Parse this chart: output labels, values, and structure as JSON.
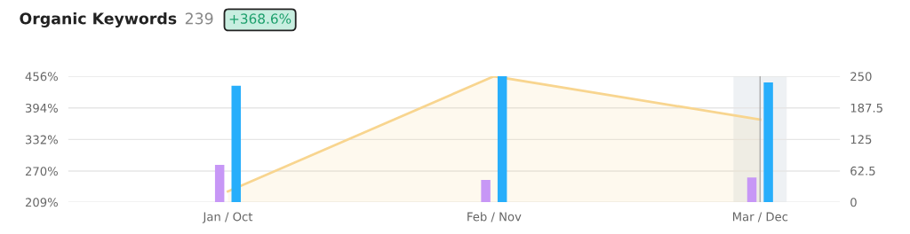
{
  "chart_data": {
    "type": "bar",
    "title": "Organic Keywords",
    "subtitle": "239",
    "annotations": [
      "+368.6%"
    ],
    "categories": [
      "Jan / Oct",
      "Feb / Nov",
      "Mar / Dec"
    ],
    "series": [
      {
        "type": "area",
        "color": "#f8d58f",
        "values": [
          230,
          456,
          371
        ]
      },
      {
        "axis": "y2",
        "color": "#c797f6",
        "values": [
          74,
          44,
          49
        ]
      },
      {
        "axis": "y2",
        "color": "#27aefb",
        "values": [
          231,
          250,
          238
        ]
      }
    ],
    "ylim": [
      209,
      456
    ],
    "yticks": [
      {
        "value": 209,
        "label": "209%"
      },
      {
        "value": 270,
        "label": "270%"
      },
      {
        "value": 332,
        "label": "332%"
      },
      {
        "value": 394,
        "label": "394%"
      },
      {
        "value": 456,
        "label": "456%"
      }
    ],
    "y2lim": [
      0,
      250
    ],
    "y2ticks": [
      0,
      62.5,
      125,
      187.5,
      250
    ],
    "bands": [
      {
        "axis": "x",
        "from": "Mar / Dec",
        "to": "Mar / Dec",
        "color": "#eef1f4"
      }
    ],
    "ref_lines": [
      {
        "axis": "x",
        "value": "Mar / Dec",
        "color": "#aaaaaa"
      }
    ],
    "grid": "y"
  }
}
